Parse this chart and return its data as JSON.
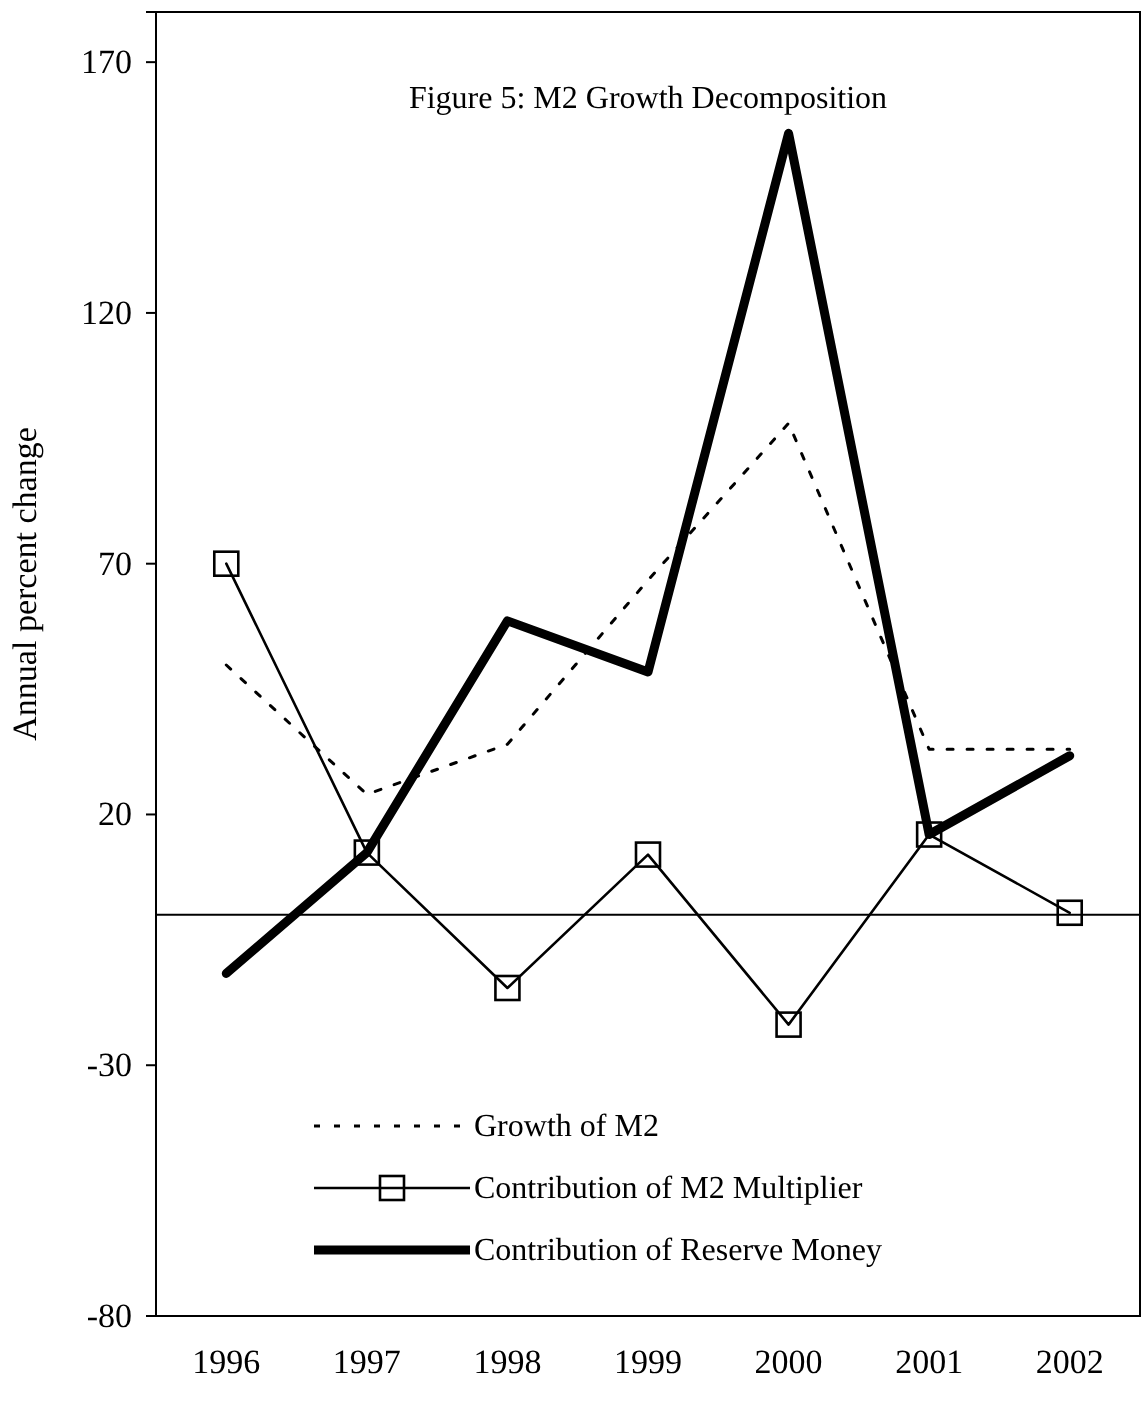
{
  "chart_data": {
    "type": "line",
    "title": "Figure 5: M2 Growth Decomposition",
    "ylabel": "Annual percent change",
    "categories": [
      "1996",
      "1997",
      "1998",
      "1999",
      "2000",
      "2001",
      "2002"
    ],
    "series": [
      {
        "name": "Growth of M2",
        "color": "#000000",
        "line_style": "dotted",
        "marker": "none",
        "values": [
          49.8,
          24,
          34,
          66.7,
          98,
          33,
          33
        ]
      },
      {
        "name": "Contribution of M2 Multiplier",
        "color": "#000000",
        "line_style": "solid",
        "marker": "square",
        "values": [
          70,
          12.4,
          -14.6,
          12,
          -21.9,
          16,
          0.4
        ]
      },
      {
        "name": "Contribution of Reserve Money",
        "color": "#000000",
        "line_style": "solid",
        "marker": "none",
        "values": [
          -11.7,
          12.4,
          58.6,
          48.4,
          155.8,
          16,
          31.7
        ]
      }
    ],
    "ylim": [
      -80,
      180
    ],
    "yticks": [
      -80,
      -30,
      20,
      70,
      120,
      170
    ],
    "ref_lines": [
      {
        "axis": "y",
        "value": 0,
        "label": null
      }
    ],
    "grid": false,
    "legend": "bottom"
  }
}
